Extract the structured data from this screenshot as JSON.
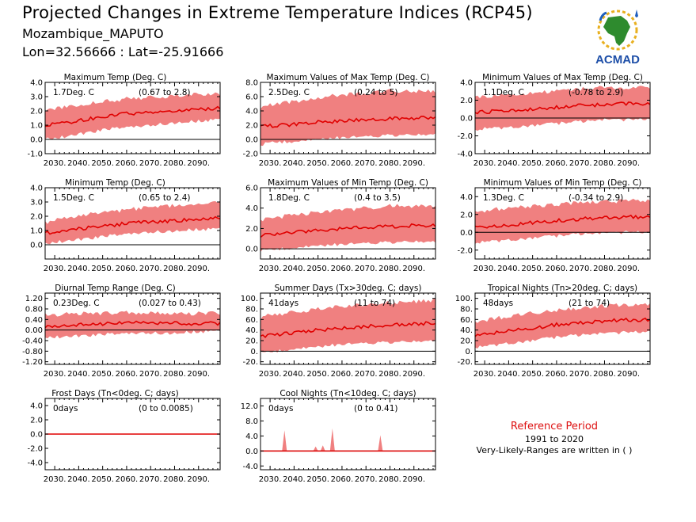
{
  "header": {
    "title": "Projected Changes in Extreme Temperature Indices (RCP45)",
    "location": "Mozambique_MAPUTO",
    "coords": "Lon=32.56666 : Lat=-25.91666"
  },
  "logo": {
    "text": "ACMAD",
    "icon": "africa-map-logo-icon"
  },
  "reference": {
    "title": "Reference Period",
    "years": "1991 to 2020",
    "note": "Very-Likely-Ranges are written in ( )"
  },
  "colors": {
    "band": "#f08080",
    "line": "#e00000",
    "text_red": "#dd1111"
  },
  "x_tick_labels": [
    "2030.",
    "2040.",
    "2050.",
    "2060.",
    "2070.",
    "2080.",
    "2090."
  ],
  "chart_data": [
    {
      "id": "txx-mean",
      "type": "area",
      "title": "Maximum Temp (Deg. C)",
      "value": "1.7Deg. C",
      "range": "(0.67 to 2.8)",
      "ylim": [
        -1.0,
        4.0
      ],
      "yticks": [
        -1.0,
        0.0,
        1.0,
        2.0,
        3.0,
        4.0
      ],
      "yticklabels": [
        "-1.0",
        "0.0",
        "1.0",
        "2.0",
        "3.0",
        "4.0"
      ],
      "x": [
        2026,
        2030,
        2040,
        2050,
        2060,
        2070,
        2080,
        2090,
        2099
      ],
      "mean": [
        1.0,
        1.1,
        1.3,
        1.6,
        1.8,
        1.9,
        2.0,
        2.1,
        2.2
      ],
      "lower": [
        0.2,
        0.2,
        0.5,
        0.8,
        1.0,
        1.1,
        1.3,
        1.4,
        1.5
      ],
      "upper": [
        1.8,
        2.0,
        2.3,
        2.5,
        2.7,
        2.8,
        2.9,
        3.0,
        3.0
      ],
      "grid": false
    },
    {
      "id": "txx-max",
      "type": "area",
      "title": "Maximum Values of Max Temp (Deg. C)",
      "value": "2.5Deg. C",
      "range": "(0.24 to 5)",
      "ylim": [
        -2.0,
        8.0
      ],
      "yticks": [
        -2.0,
        0.0,
        2.0,
        4.0,
        6.0,
        8.0
      ],
      "yticklabels": [
        "-2.0",
        "0.0",
        "2.0",
        "4.0",
        "6.0",
        "8.0"
      ],
      "x": [
        2026,
        2030,
        2040,
        2050,
        2060,
        2070,
        2080,
        2090,
        2099
      ],
      "mean": [
        1.8,
        1.9,
        2.1,
        2.4,
        2.6,
        2.8,
        2.9,
        3.0,
        3.1
      ],
      "lower": [
        -0.5,
        -0.2,
        0.0,
        0.3,
        0.5,
        0.6,
        0.8,
        0.9,
        1.0
      ],
      "upper": [
        4.0,
        4.5,
        5.0,
        5.5,
        6.0,
        6.2,
        6.5,
        6.5,
        6.5
      ],
      "grid": false
    },
    {
      "id": "txn",
      "type": "area",
      "title": "Minimum Values of Max Temp (Deg. C)",
      "value": "1.1Deg. C",
      "range": "(-0.78 to 2.9)",
      "ylim": [
        -4.0,
        4.0
      ],
      "yticks": [
        -4.0,
        -2.0,
        0.0,
        2.0,
        4.0
      ],
      "yticklabels": [
        "-4.0",
        "-2.0",
        "0.0",
        "2.0",
        "4.0"
      ],
      "x": [
        2026,
        2030,
        2040,
        2050,
        2060,
        2070,
        2080,
        2090,
        2099
      ],
      "mean": [
        0.6,
        0.7,
        0.8,
        1.0,
        1.2,
        1.4,
        1.5,
        1.6,
        1.6
      ],
      "lower": [
        -1.2,
        -1.0,
        -0.9,
        -0.6,
        -0.4,
        -0.2,
        0.0,
        0.0,
        0.1
      ],
      "upper": [
        2.0,
        2.2,
        2.4,
        2.6,
        2.8,
        3.0,
        3.2,
        3.2,
        3.2
      ],
      "grid": false
    },
    {
      "id": "tn-mean",
      "type": "area",
      "title": "Minimum Temp (Deg. C)",
      "value": "1.5Deg. C",
      "range": "(0.65 to 2.4)",
      "ylim": [
        -1.0,
        4.0
      ],
      "yticks": [
        0.0,
        1.0,
        2.0,
        3.0,
        4.0
      ],
      "yticklabels": [
        "0.0",
        "1.0",
        "2.0",
        "3.0",
        "4.0"
      ],
      "x": [
        2026,
        2030,
        2040,
        2050,
        2060,
        2070,
        2080,
        2090,
        2099
      ],
      "mean": [
        0.8,
        0.9,
        1.1,
        1.3,
        1.5,
        1.6,
        1.7,
        1.8,
        1.9
      ],
      "lower": [
        0.2,
        0.3,
        0.5,
        0.7,
        0.9,
        1.0,
        1.1,
        1.2,
        1.2
      ],
      "upper": [
        1.4,
        1.6,
        1.9,
        2.1,
        2.3,
        2.5,
        2.6,
        2.7,
        2.8
      ],
      "grid": false
    },
    {
      "id": "tnx",
      "type": "area",
      "title": "Maximum Values of Min Temp (Deg. C)",
      "value": "1.8Deg. C",
      "range": "(0.4 to 3.5)",
      "ylim": [
        -1.0,
        6.0
      ],
      "yticks": [
        0.0,
        2.0,
        4.0,
        6.0
      ],
      "yticklabels": [
        "0.0",
        "2.0",
        "4.0",
        "6.0"
      ],
      "x": [
        2026,
        2030,
        2040,
        2050,
        2060,
        2070,
        2080,
        2090,
        2099
      ],
      "mean": [
        1.3,
        1.4,
        1.6,
        1.8,
        2.0,
        2.1,
        2.2,
        2.3,
        2.3
      ],
      "lower": [
        0.0,
        0.1,
        0.3,
        0.5,
        0.6,
        0.7,
        0.8,
        0.9,
        0.9
      ],
      "upper": [
        2.6,
        2.8,
        3.1,
        3.4,
        3.6,
        3.8,
        4.0,
        4.0,
        4.0
      ],
      "grid": false
    },
    {
      "id": "tnn",
      "type": "area",
      "title": "Minimum Values of Min Temp (Deg. C)",
      "value": "1.3Deg. C",
      "range": "(-0.34 to 2.9)",
      "ylim": [
        -3.0,
        5.0
      ],
      "yticks": [
        -2.0,
        0.0,
        2.0,
        4.0
      ],
      "yticklabels": [
        "-2.0",
        "0.0",
        "2.0",
        "4.0"
      ],
      "x": [
        2026,
        2030,
        2040,
        2050,
        2060,
        2070,
        2080,
        2090,
        2099
      ],
      "mean": [
        0.5,
        0.6,
        0.8,
        1.1,
        1.3,
        1.5,
        1.6,
        1.7,
        1.7
      ],
      "lower": [
        -1.0,
        -0.9,
        -0.7,
        -0.4,
        -0.2,
        0.0,
        0.1,
        0.2,
        0.2
      ],
      "upper": [
        2.0,
        2.2,
        2.5,
        2.7,
        2.9,
        3.1,
        3.2,
        3.3,
        3.3
      ],
      "grid": false
    },
    {
      "id": "dtr",
      "type": "area",
      "title": "Diurnal Temp Range (Deg. C)",
      "value": "0.23Deg. C",
      "range": "(0.027 to 0.43)",
      "ylim": [
        -1.3,
        1.4
      ],
      "yticks": [
        -1.2,
        -0.8,
        -0.4,
        0.0,
        0.4,
        0.8,
        1.2
      ],
      "yticklabels": [
        "-1.20",
        "-0.80",
        "-0.40",
        "0.00",
        "0.40",
        "0.80",
        "1.20"
      ],
      "x": [
        2026,
        2030,
        2040,
        2050,
        2060,
        2070,
        2080,
        2090,
        2099
      ],
      "mean": [
        0.15,
        0.17,
        0.2,
        0.22,
        0.28,
        0.25,
        0.25,
        0.25,
        0.25
      ],
      "lower": [
        -0.2,
        -0.2,
        -0.15,
        -0.1,
        -0.05,
        -0.05,
        -0.05,
        0.0,
        0.0
      ],
      "upper": [
        0.5,
        0.5,
        0.55,
        0.55,
        0.6,
        0.55,
        0.55,
        0.55,
        0.55
      ],
      "grid": false
    },
    {
      "id": "su30",
      "type": "area",
      "title": "Summer Days (Tx>30deg. C; days)",
      "value": "41days",
      "range": "(11 to 74)",
      "ylim": [
        -25,
        110
      ],
      "yticks": [
        -20,
        0,
        20,
        40,
        60,
        80,
        100
      ],
      "yticklabels": [
        "-20.",
        "0.",
        "20.",
        "40.",
        "60.",
        "80.",
        "100."
      ],
      "x": [
        2026,
        2030,
        2040,
        2050,
        2060,
        2070,
        2080,
        2090,
        2099
      ],
      "mean": [
        28,
        30,
        35,
        40,
        44,
        47,
        50,
        52,
        54
      ],
      "lower": [
        0,
        2,
        8,
        12,
        16,
        18,
        20,
        22,
        24
      ],
      "upper": [
        60,
        64,
        70,
        76,
        80,
        84,
        88,
        90,
        92
      ],
      "grid": false
    },
    {
      "id": "tr20",
      "type": "area",
      "title": "Tropical Nights (Tn>20deg. C; days)",
      "value": "48days",
      "range": "(21 to 74)",
      "ylim": [
        -25,
        110
      ],
      "yticks": [
        -20,
        0,
        20,
        40,
        60,
        80,
        100
      ],
      "yticklabels": [
        "-20.",
        "0.",
        "20.",
        "40.",
        "60.",
        "80.",
        "100."
      ],
      "x": [
        2026,
        2030,
        2040,
        2050,
        2060,
        2070,
        2080,
        2090,
        2099
      ],
      "mean": [
        30,
        32,
        38,
        44,
        50,
        54,
        57,
        59,
        60
      ],
      "lower": [
        10,
        12,
        18,
        24,
        30,
        34,
        37,
        39,
        40
      ],
      "upper": [
        52,
        55,
        62,
        68,
        74,
        78,
        82,
        84,
        86
      ],
      "grid": false
    },
    {
      "id": "fd",
      "type": "area",
      "title": "Frost Days (Tn<0deg. C; days)",
      "value": "0days",
      "range": "(0 to 0.0085)",
      "ylim": [
        -5.0,
        5.0
      ],
      "yticks": [
        -4.0,
        -2.0,
        0.0,
        2.0,
        4.0
      ],
      "yticklabels": [
        "-4.0",
        "-2.0",
        "0.0",
        "2.0",
        "4.0"
      ],
      "x": [
        2026,
        2099
      ],
      "mean": [
        0.0,
        0.0
      ],
      "lower": [
        0.0,
        0.0
      ],
      "upper": [
        0.0,
        0.0
      ],
      "grid": false
    },
    {
      "id": "tn10",
      "type": "area",
      "title": "Cool Nights (Tn<10deg. C; days)",
      "value": "0days",
      "range": "(0 to 0.41)",
      "ylim": [
        -5.0,
        14.0
      ],
      "yticks": [
        -4.0,
        0.0,
        4.0,
        8.0,
        12.0
      ],
      "yticklabels": [
        "-4.0",
        "0.0",
        "4.0",
        "8.0",
        "12.0"
      ],
      "x": [
        2026,
        2099
      ],
      "mean": [
        0.0,
        0.0
      ],
      "lower": [
        0.0,
        0.0
      ],
      "upper": [
        0.0,
        0.0
      ],
      "spikes": [
        {
          "x": 2036,
          "y": 5.5
        },
        {
          "x": 2049,
          "y": 1.2
        },
        {
          "x": 2052,
          "y": 1.5
        },
        {
          "x": 2056,
          "y": 6.0
        },
        {
          "x": 2076,
          "y": 4.2
        }
      ],
      "grid": false
    }
  ]
}
